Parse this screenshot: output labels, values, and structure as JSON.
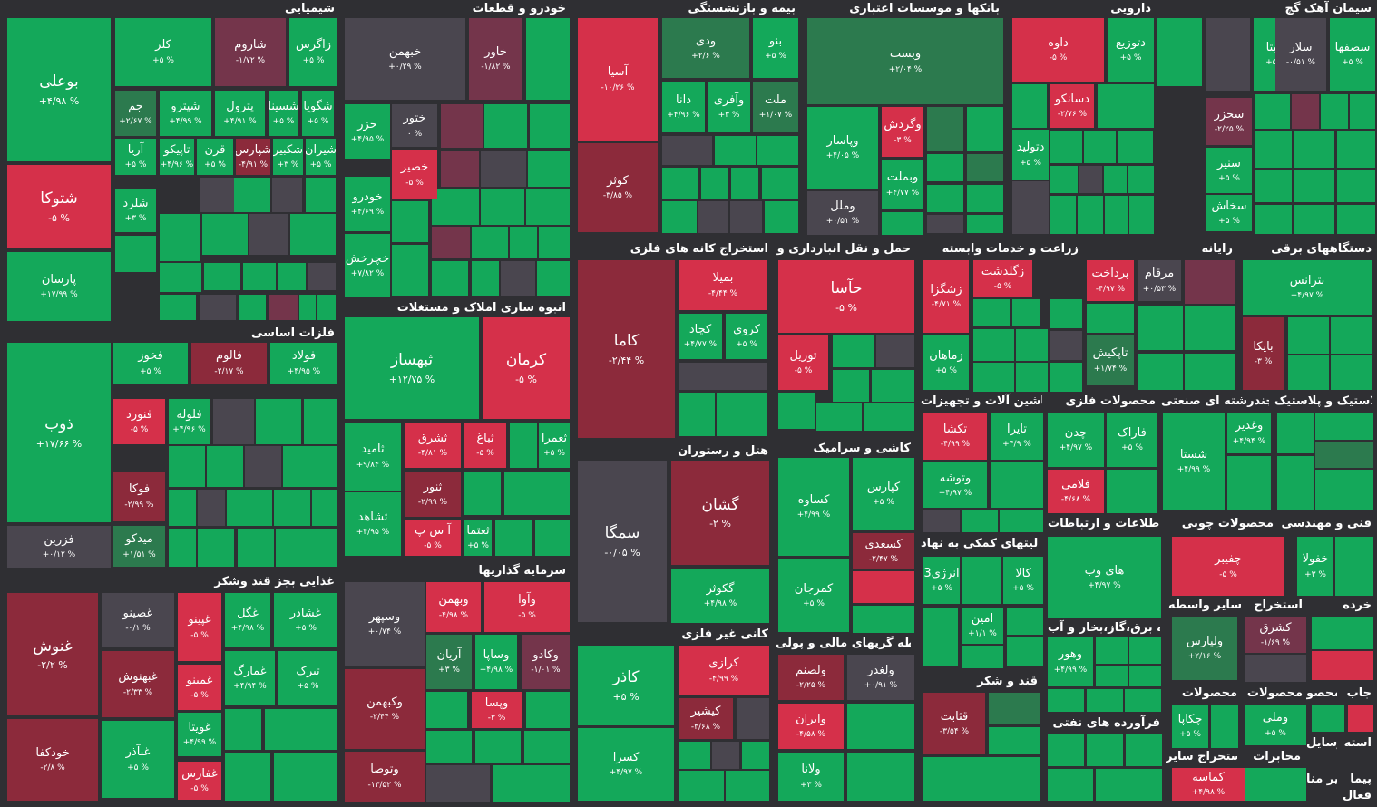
{
  "colors": {
    "green": "#14a85a",
    "dgreen": "#2c7a4e",
    "red": "#d5304a",
    "dred": "#8c2a3b",
    "mred": "#74354b",
    "gray": "#4a464f"
  },
  "sectors": [
    {
      "title": "شیمیایی",
      "tiles": [
        {
          "s": "بوعلی",
          "c": "+۴/۹۸ %",
          "col": "green"
        },
        {
          "s": "شتوکا",
          "c": "-۵ %",
          "col": "red"
        },
        {
          "s": "پارسان",
          "c": "+۱۷/۹۹ %",
          "col": "green"
        },
        {
          "s": "کلر",
          "c": "+۵ %",
          "col": "green"
        },
        {
          "s": "شاروم",
          "c": "-۱/۷۲ %",
          "col": "mred"
        },
        {
          "s": "زاگرس",
          "c": "+۵ %",
          "col": "green"
        },
        {
          "s": "جم",
          "c": "+۲/۶۷ %",
          "col": "dgreen"
        },
        {
          "s": "شپترو",
          "c": "+۴/۹۹ %",
          "col": "green"
        },
        {
          "s": "پترول",
          "c": "+۴/۹۱ %",
          "col": "green"
        },
        {
          "s": "شسینا",
          "c": "+۵ %",
          "col": "green"
        },
        {
          "s": "شگویا",
          "c": "+۵ %",
          "col": "green"
        },
        {
          "s": "آریا",
          "c": "+۵ %",
          "col": "green"
        },
        {
          "s": "تاپیکو",
          "c": "+۴/۹۶ %",
          "col": "green"
        },
        {
          "s": "قرن",
          "c": "+۵ %",
          "col": "green"
        },
        {
          "s": "شپارس",
          "c": "-۴/۹۱ %",
          "col": "dred"
        },
        {
          "s": "شکبیر",
          "c": "+۳ %",
          "col": "green"
        },
        {
          "s": "شیران",
          "c": "+۵ %",
          "col": "green"
        },
        {
          "s": "شلرد",
          "c": "+۳ %",
          "col": "green"
        }
      ]
    },
    {
      "title": "خودرو و قطعات",
      "tiles": [
        {
          "s": "خبهمن",
          "c": "+۰/۲۹ %",
          "col": "gray"
        },
        {
          "s": "خاور",
          "c": "-۱/۸۲ %",
          "col": "mred"
        },
        {
          "s": "خزر",
          "c": "+۴/۹۵ %",
          "col": "green"
        },
        {
          "s": "ختور",
          "c": "۰ %",
          "col": "gray"
        },
        {
          "s": "خصیر",
          "c": "-۵ %",
          "col": "red"
        },
        {
          "s": "خودرو",
          "c": "+۴/۶۹ %",
          "col": "green"
        },
        {
          "s": "خچرخش",
          "c": "+۷/۸۲ %",
          "col": "green"
        }
      ]
    },
    {
      "title": "بیمه و بازنشستگی",
      "tiles": [
        {
          "s": "آسیا",
          "c": "-۱۰/۲۶ %",
          "col": "red"
        },
        {
          "s": "کوثر",
          "c": "-۳/۸۵ %",
          "col": "dred"
        },
        {
          "s": "ودی",
          "c": "+۲/۶ %",
          "col": "dgreen"
        },
        {
          "s": "بنو",
          "c": "+۵ %",
          "col": "green"
        },
        {
          "s": "دانا",
          "c": "+۴/۹۶ %",
          "col": "green"
        },
        {
          "s": "وآفری",
          "c": "+۳ %",
          "col": "green"
        },
        {
          "s": "ملت",
          "c": "+۱/۰۷ %",
          "col": "dgreen"
        }
      ]
    },
    {
      "title": "بانکها و موسسات اعتباری",
      "tiles": [
        {
          "s": "وبست",
          "c": "+۲/۰۴ %",
          "col": "dgreen"
        },
        {
          "s": "وپاسار",
          "c": "+۴/۰۵ %",
          "col": "green"
        },
        {
          "s": "وگردش",
          "c": "-۳ %",
          "col": "red"
        },
        {
          "s": "وبملت",
          "c": "+۴/۷۷ %",
          "col": "green"
        },
        {
          "s": "وملل",
          "c": "+۰/۵۱ %",
          "col": "gray"
        }
      ]
    },
    {
      "title": "دارویی",
      "tiles": [
        {
          "s": "داوه",
          "c": "-۵ %",
          "col": "red"
        },
        {
          "s": "دتوزیع",
          "c": "+۵ %",
          "col": "green"
        },
        {
          "s": "دسانکو",
          "c": "-۲/۷۶ %",
          "col": "red"
        },
        {
          "s": "دتولید",
          "c": "+۵ %",
          "col": "green"
        }
      ]
    },
    {
      "title": "سیمان آهک گچ",
      "tiles": [
        {
          "s": "سیتا",
          "c": "+۵ %",
          "col": "green"
        },
        {
          "s": "سلار",
          "c": "-۰/۵۱ %",
          "col": "gray"
        },
        {
          "s": "سصفها",
          "c": "+۵ %",
          "col": "green"
        },
        {
          "s": "سخزر",
          "c": "-۲/۲۵ %",
          "col": "mred"
        },
        {
          "s": "سنیر",
          "c": "+۵ %",
          "col": "green"
        },
        {
          "s": "سخاش",
          "c": "+۵ %",
          "col": "green"
        }
      ]
    },
    {
      "title": "فلزات اساسی",
      "tiles": [
        {
          "s": "ذوب",
          "c": "+۱۷/۶۶ %",
          "col": "green"
        },
        {
          "s": "فزرین",
          "c": "+۰/۱۲ %",
          "col": "gray"
        },
        {
          "s": "فخوز",
          "c": "+۵ %",
          "col": "green"
        },
        {
          "s": "فالوم",
          "c": "-۲/۱۷ %",
          "col": "dred"
        },
        {
          "s": "فولاد",
          "c": "+۴/۹۵ %",
          "col": "green"
        },
        {
          "s": "فنورد",
          "c": "-۵ %",
          "col": "red"
        },
        {
          "s": "فلوله",
          "c": "+۴/۹۶ %",
          "col": "green"
        },
        {
          "s": "فوکا",
          "c": "-۲/۹۹ %",
          "col": "dred"
        },
        {
          "s": "میدکو",
          "c": "+۱/۵۱ %",
          "col": "dgreen"
        }
      ]
    },
    {
      "title": "انبوه سازی املاک و مستغلات",
      "tiles": [
        {
          "s": "ثبهساز",
          "c": "+۱۲/۷۵ %",
          "col": "green"
        },
        {
          "s": "کرمان",
          "c": "-۵ %",
          "col": "red"
        },
        {
          "s": "ثامید",
          "c": "+۹/۸۴ %",
          "col": "green"
        },
        {
          "s": "ثشرق",
          "c": "-۴/۸۱ %",
          "col": "red"
        },
        {
          "s": "ثباغ",
          "c": "-۵ %",
          "col": "red"
        },
        {
          "s": "ثعمرا",
          "c": "+۵ %",
          "col": "green"
        },
        {
          "s": "ثنور",
          "c": "-۲/۹۹ %",
          "col": "dred"
        },
        {
          "s": "ثشاهد",
          "c": "+۴/۹۵ %",
          "col": "green"
        },
        {
          "s": "آ س پ",
          "c": "-۵ %",
          "col": "red"
        },
        {
          "s": "ثعتما",
          "c": "+۵ %",
          "col": "green"
        }
      ]
    },
    {
      "title": "استخراج کانه های فلزی",
      "tiles": [
        {
          "s": "کاما",
          "c": "-۲/۴۴ %",
          "col": "dred"
        },
        {
          "s": "بمیلا",
          "c": "-۴/۴۴ %",
          "col": "red"
        },
        {
          "s": "کچاد",
          "c": "+۴/۷۷ %",
          "col": "green"
        },
        {
          "s": "کروی",
          "c": "+۵ %",
          "col": "green"
        }
      ]
    },
    {
      "title": "حمل و نقل انبارداری و",
      "tiles": [
        {
          "s": "حآسا",
          "c": "-۵ %",
          "col": "red"
        },
        {
          "s": "توریل",
          "c": "-۵ %",
          "col": "red"
        }
      ]
    },
    {
      "title": "زراعت و خدمات وابسته",
      "tiles": [
        {
          "s": "زگلدشت",
          "c": "-۵ %",
          "col": "red"
        },
        {
          "s": "زشگزا",
          "c": "-۴/۷۱ %",
          "col": "red"
        },
        {
          "s": "زماهان",
          "c": "+۵ %",
          "col": "green"
        }
      ]
    },
    {
      "title": "رایانه",
      "tiles": [
        {
          "s": "پرداخت",
          "c": "-۴/۹۷ %",
          "col": "red"
        },
        {
          "s": "مرقام",
          "c": "+۰/۵۳ %",
          "col": "gray"
        },
        {
          "s": "تاپکیش",
          "c": "+۱/۷۴ %",
          "col": "dgreen"
        }
      ]
    },
    {
      "title": "دستگاههای برقی",
      "tiles": [
        {
          "s": "بترانس",
          "c": "+۴/۹۷ %",
          "col": "green"
        },
        {
          "s": "بایکا",
          "c": "-۳ %",
          "col": "dred"
        }
      ]
    },
    {
      "title": "هتل و رستوران",
      "tiles": [
        {
          "s": "سمگا",
          "c": "-۰/۰۵ %",
          "col": "gray"
        },
        {
          "s": "گشان",
          "c": "-۲ %",
          "col": "dred"
        },
        {
          "s": "گکوثر",
          "c": "+۴/۹۸ %",
          "col": "green"
        }
      ]
    },
    {
      "title": "کاشی و سرامیک",
      "tiles": [
        {
          "s": "کساوه",
          "c": "+۴/۹۹ %",
          "col": "green"
        },
        {
          "s": "کپارس",
          "c": "+۵ %",
          "col": "green"
        },
        {
          "s": "کسعدی",
          "c": "-۲/۴۷ %",
          "col": "dred"
        },
        {
          "s": "کمرجان",
          "c": "+۵ %",
          "col": "green"
        }
      ]
    },
    {
      "title": "ماشین آلات و تجهیزات",
      "tiles": [
        {
          "s": "تکشا",
          "c": "-۴/۹۹ %",
          "col": "red"
        },
        {
          "s": "تایرا",
          "c": "+۴/۹ %",
          "col": "green"
        },
        {
          "s": "وتوشه",
          "c": "+۴/۹۷ %",
          "col": "green"
        }
      ]
    },
    {
      "title": "محصولات فلزی",
      "tiles": [
        {
          "s": "چدن",
          "c": "+۴/۹۷ %",
          "col": "green"
        },
        {
          "s": "فاراک",
          "c": "+۵ %",
          "col": "green"
        },
        {
          "s": "فلامی",
          "c": "-۴/۶۸ %",
          "col": "red"
        }
      ]
    },
    {
      "title": "چندرشته ای صنعتی",
      "tiles": [
        {
          "s": "شستا",
          "c": "+۴/۹۹ %",
          "col": "green"
        },
        {
          "s": "وغدیر",
          "c": "+۴/۹۴ %",
          "col": "green"
        }
      ]
    },
    {
      "title": "لاستیک و پلاستیک",
      "tiles": []
    },
    {
      "title": "سرمایه گذاریها",
      "tiles": [
        {
          "s": "وسپهر",
          "c": "+۰/۷۴ %",
          "col": "gray"
        },
        {
          "s": "وبهمن",
          "c": "-۴/۹۸ %",
          "col": "red"
        },
        {
          "s": "وآوا",
          "c": "-۵ %",
          "col": "red"
        },
        {
          "s": "آریان",
          "c": "+۳ %",
          "col": "dgreen"
        },
        {
          "s": "وساپا",
          "c": "+۴/۹۸ %",
          "col": "green"
        },
        {
          "s": "وکادو",
          "c": "-۱/۰۱ %",
          "col": "mred"
        },
        {
          "s": "وکبهمن",
          "c": "-۲/۴۴ %",
          "col": "dred"
        },
        {
          "s": "وپسا",
          "c": "-۳ %",
          "col": "red"
        },
        {
          "s": "وتوصا",
          "c": "-۱۳/۵۲ %",
          "col": "dred"
        }
      ]
    },
    {
      "title": "غذایی بجز قند وشکر",
      "tiles": [
        {
          "s": "غنوش",
          "c": "-۲/۲ %",
          "col": "dred"
        },
        {
          "s": "خودکفا",
          "c": "-۲/۸ %",
          "col": "dred"
        },
        {
          "s": "غصینو",
          "c": "-۰/۱ %",
          "col": "gray"
        },
        {
          "s": "غپینو",
          "c": "-۵ %",
          "col": "red"
        },
        {
          "s": "غگل",
          "c": "+۴/۹۸ %",
          "col": "green"
        },
        {
          "s": "غشاذر",
          "c": "+۵ %",
          "col": "green"
        },
        {
          "s": "غبهنوش",
          "c": "-۲/۳۳ %",
          "col": "dred"
        },
        {
          "s": "غمینو",
          "c": "-۵ %",
          "col": "red"
        },
        {
          "s": "غمارگ",
          "c": "+۴/۹۴ %",
          "col": "green"
        },
        {
          "s": "تبرک",
          "c": "+۵ %",
          "col": "green"
        },
        {
          "s": "غویتا",
          "c": "+۴/۹۹ %",
          "col": "green"
        },
        {
          "s": "غبآذر",
          "c": "+۵ %",
          "col": "green"
        },
        {
          "s": "غفارس",
          "c": "-۵ %",
          "col": "red"
        }
      ]
    },
    {
      "title": "کانی غیر فلزی",
      "tiles": [
        {
          "s": "کاذر",
          "c": "+۵ %",
          "col": "green"
        },
        {
          "s": "کرازی",
          "c": "-۴/۹۹ %",
          "col": "red"
        },
        {
          "s": "کیشیر",
          "c": "-۳/۶۸ %",
          "col": "dred"
        },
        {
          "s": "کسرا",
          "c": "+۴/۹۷ %",
          "col": "green"
        }
      ]
    },
    {
      "title": "واسطه گریهای مالی و پولی",
      "tiles": [
        {
          "s": "ولصنم",
          "c": "-۲/۲۵ %",
          "col": "dred"
        },
        {
          "s": "ولغدر",
          "c": "+۰/۹۱ %",
          "col": "gray"
        },
        {
          "s": "وایران",
          "c": "-۴/۵۸ %",
          "col": "red"
        },
        {
          "s": "ولانا",
          "c": "+۳ %",
          "col": "green"
        }
      ]
    },
    {
      "title": "فعالیتهای کمکی به نهاد",
      "tiles": [
        {
          "s": "انرژی3",
          "c": "+۵ %",
          "col": "green"
        },
        {
          "s": "کالا",
          "c": "+۵ %",
          "col": "green"
        },
        {
          "s": "امین",
          "c": "+۱/۱ %",
          "col": "green"
        }
      ]
    },
    {
      "title": "قند و شکر",
      "tiles": [
        {
          "s": "قثابت",
          "c": "-۳/۵۴ %",
          "col": "dred"
        }
      ]
    },
    {
      "title": "اطلاعات و ارتباطات",
      "tiles": [
        {
          "s": "های وب",
          "c": "+۴/۹۷ %",
          "col": "green"
        }
      ]
    },
    {
      "title": "عرضه برق،گاز،بخار و آب",
      "tiles": [
        {
          "s": "وهور",
          "c": "+۴/۹۹ %",
          "col": "green"
        }
      ]
    },
    {
      "title": "فرآورده های نفتی",
      "tiles": []
    },
    {
      "title": "محصولات چوبی",
      "tiles": [
        {
          "s": "چفیبر",
          "c": "-۵ %",
          "col": "red"
        }
      ]
    },
    {
      "title": "فنی و مهندسی",
      "tiles": [
        {
          "s": "خفولا",
          "c": "+۳ %",
          "col": "green"
        }
      ]
    },
    {
      "title": "سایر واسطه",
      "tiles": [
        {
          "s": "ولپارس",
          "c": "+۲/۱۶ %",
          "col": "dgreen"
        }
      ]
    },
    {
      "title": "استخراج",
      "tiles": [
        {
          "s": "کشرق",
          "c": "-۱/۶۹ %",
          "col": "mred"
        }
      ]
    },
    {
      "title": "خرده",
      "tiles": []
    },
    {
      "title": "محصولات",
      "tiles": [
        {
          "s": "چکاپا",
          "c": "+۵ %",
          "col": "green"
        }
      ]
    },
    {
      "title": "محصولات",
      "tiles": [
        {
          "s": "وملی",
          "c": "+۵ %",
          "col": "green"
        }
      ]
    },
    {
      "title": "محصو",
      "tiles": []
    },
    {
      "title": "جاب",
      "tiles": []
    },
    {
      "title": "استخراج سایر",
      "tiles": [
        {
          "s": "کماسه",
          "c": "+۴/۹۸ %",
          "col": "red"
        }
      ]
    },
    {
      "title": "مخابرات",
      "tiles": []
    },
    {
      "title": "وسایل",
      "tiles": []
    },
    {
      "title": "استه",
      "tiles": []
    },
    {
      "title": "سایر منا",
      "tiles": []
    },
    {
      "title": "پیما",
      "tiles": []
    },
    {
      "title": "فعال",
      "tiles": []
    }
  ]
}
